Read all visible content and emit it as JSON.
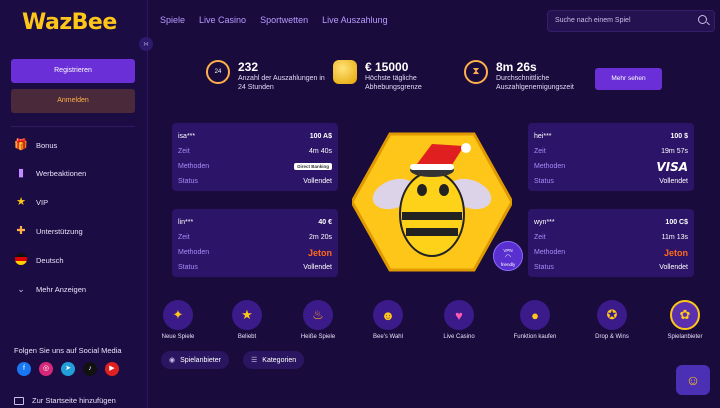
{
  "brand": {
    "logo_text": "WazBee"
  },
  "sidebar": {
    "register_label": "Registrieren",
    "login_label": "Anmelden",
    "items": [
      {
        "label": "Bonus",
        "icon": "gift-icon"
      },
      {
        "label": "Werbeaktionen",
        "icon": "promotions-icon"
      },
      {
        "label": "VIP",
        "icon": "star-icon"
      },
      {
        "label": "Unterstützung",
        "icon": "support-icon"
      },
      {
        "label": "Deutsch",
        "icon": "germany-flag-icon"
      },
      {
        "label": "Mehr Anzeigen",
        "icon": "chevron-down-icon"
      }
    ],
    "social_title": "Folgen Sie uns auf Social Media",
    "socials": [
      "facebook",
      "instagram",
      "telegram",
      "tiktok",
      "youtube"
    ],
    "add_home_label": "Zur Startseite hinzufügen"
  },
  "nav": {
    "items": [
      "Spiele",
      "Live Casino",
      "Sportwetten",
      "Live Auszahlung"
    ]
  },
  "search": {
    "placeholder": "Suche nach einem Spiel"
  },
  "stats": [
    {
      "value": "232",
      "label": "Anzahl der Auszahlungen in 24 Stunden",
      "icon_text": "24"
    },
    {
      "value": "€ 15000",
      "label": "Höchste tägliche Abhebungsgrenze"
    },
    {
      "value": "8m 26s",
      "label": "Durchschnittliche Auszahlgenemigungszeit"
    }
  ],
  "more_button": "Mehr sehen",
  "field_labels": {
    "time": "Zeit",
    "method": "Methoden",
    "status": "Status"
  },
  "payouts": [
    {
      "user": "isa***",
      "amount": "100 A$",
      "time": "4m 40s",
      "method": "Direct Banking",
      "status": "Vollendet"
    },
    {
      "user": "hei***",
      "amount": "100 $",
      "time": "19m 57s",
      "method": "VISA",
      "status": "Vollendet"
    },
    {
      "user": "lin***",
      "amount": "40 €",
      "time": "2m 20s",
      "method": "Jeton",
      "status": "Vollendet"
    },
    {
      "user": "wyn***",
      "amount": "100 C$",
      "time": "11m 13s",
      "method": "Jeton",
      "status": "Vollendet"
    }
  ],
  "vpn_badge": {
    "line1": "VPN",
    "line2": "friendly"
  },
  "categories": [
    {
      "label": "Neue Spiele",
      "icon": "✦"
    },
    {
      "label": "Beliebt",
      "icon": "★"
    },
    {
      "label": "Heiße Spiele",
      "icon": "♨"
    },
    {
      "label": "Bee's Wahl",
      "icon": "☻"
    },
    {
      "label": "Live Casino",
      "icon": "♥"
    },
    {
      "label": "Funktion kaufen",
      "icon": "●"
    },
    {
      "label": "Drop & Wins",
      "icon": "✪"
    },
    {
      "label": "Spielanbieter",
      "icon": "✿"
    }
  ],
  "filters": {
    "providers": "Spielanbieter",
    "categories": "Kategorien"
  },
  "colors": {
    "bg": "#1a0b3d",
    "card": "#2c1468",
    "accent": "#6a2fd6",
    "brand_yellow": "#ffc61a",
    "jeton_orange": "#ff6a1a"
  }
}
